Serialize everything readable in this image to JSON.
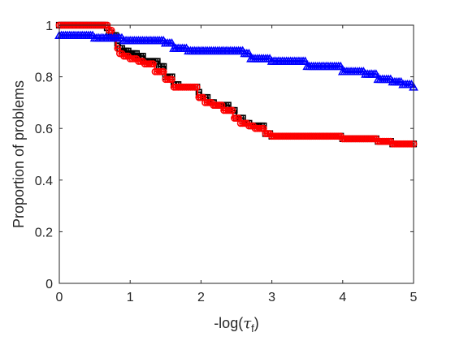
{
  "chart_data": {
    "type": "line",
    "xlabel": {
      "prefix": "-log(",
      "symbol": "τ",
      "subscript": "f",
      "suffix": ")"
    },
    "ylabel": "Proportion of problems",
    "xlim": [
      0,
      5
    ],
    "ylim": [
      0,
      1
    ],
    "xticks": [
      0,
      1,
      2,
      3,
      4,
      5
    ],
    "xtick_labels": [
      "0",
      "1",
      "2",
      "3",
      "4",
      "5"
    ],
    "yticks": [
      0,
      0.2,
      0.4,
      0.6,
      0.8,
      1
    ],
    "ytick_labels": [
      "0",
      "0.2",
      "0.4",
      "0.6",
      "0.8",
      "1"
    ],
    "grid": false,
    "legend": "none",
    "series": [
      {
        "color": "#000000",
        "marker": "square",
        "x": [
          0,
          0.5,
          0.65,
          0.7,
          0.75,
          0.8,
          0.85,
          0.9,
          1.0,
          1.1,
          1.2,
          1.4,
          1.5,
          1.6,
          1.7,
          1.95,
          2.0,
          2.1,
          2.2,
          2.4,
          2.5,
          2.6,
          2.7,
          2.9,
          3.0,
          3.5,
          4.0,
          4.5,
          4.7,
          5.0
        ],
        "y": [
          1.0,
          1.0,
          0.99,
          0.97,
          0.96,
          0.93,
          0.91,
          0.9,
          0.89,
          0.88,
          0.86,
          0.84,
          0.8,
          0.77,
          0.76,
          0.74,
          0.72,
          0.7,
          0.69,
          0.67,
          0.64,
          0.62,
          0.61,
          0.58,
          0.57,
          0.57,
          0.56,
          0.55,
          0.54,
          0.54
        ]
      },
      {
        "color": "#ff0000",
        "marker": "circle",
        "x": [
          0,
          0.4,
          0.7,
          0.75,
          0.8,
          0.85,
          0.9,
          1.0,
          1.1,
          1.2,
          1.35,
          1.5,
          1.6,
          1.7,
          1.95,
          2.05,
          2.15,
          2.3,
          2.45,
          2.55,
          2.65,
          2.75,
          2.9,
          3.0,
          3.5,
          4.0,
          4.5,
          4.7,
          5.0
        ],
        "y": [
          1.0,
          1.0,
          0.98,
          0.95,
          0.91,
          0.89,
          0.88,
          0.87,
          0.86,
          0.85,
          0.82,
          0.79,
          0.76,
          0.76,
          0.72,
          0.7,
          0.69,
          0.67,
          0.64,
          0.62,
          0.61,
          0.6,
          0.58,
          0.57,
          0.57,
          0.56,
          0.55,
          0.54,
          0.54
        ]
      },
      {
        "color": "#0000ff",
        "marker": "triangle",
        "x": [
          0,
          0.45,
          0.5,
          0.8,
          0.9,
          1.5,
          1.6,
          1.8,
          2.6,
          2.7,
          3.0,
          3.5,
          4.0,
          4.3,
          4.5,
          4.7,
          4.85,
          5.0
        ],
        "y": [
          0.96,
          0.96,
          0.95,
          0.95,
          0.94,
          0.93,
          0.91,
          0.9,
          0.89,
          0.87,
          0.86,
          0.84,
          0.82,
          0.81,
          0.79,
          0.78,
          0.77,
          0.76
        ]
      }
    ]
  }
}
